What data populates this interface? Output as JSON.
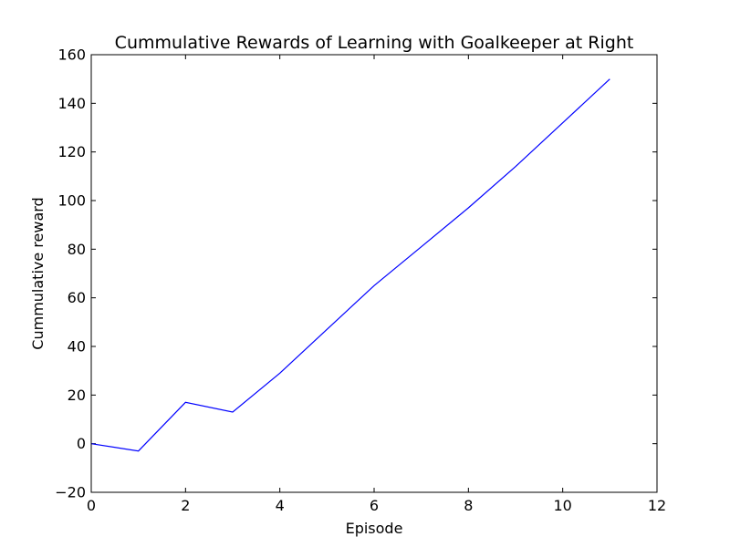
{
  "chart_data": {
    "type": "line",
    "title": "Cummulative Rewards of Learning with Goalkeeper at Right",
    "xlabel": "Episode",
    "ylabel": "Cummulative reward",
    "xlim": [
      0,
      12
    ],
    "ylim": [
      -20,
      160
    ],
    "x_ticks": [
      0,
      2,
      4,
      6,
      8,
      10,
      12
    ],
    "y_ticks": [
      -20,
      0,
      20,
      40,
      60,
      80,
      100,
      120,
      140,
      160
    ],
    "x_tick_labels": [
      "0",
      "2",
      "4",
      "6",
      "8",
      "10",
      "12"
    ],
    "y_tick_labels": [
      "−20",
      "0",
      "20",
      "40",
      "60",
      "80",
      "100",
      "120",
      "140",
      "160"
    ],
    "grid": false,
    "series": [
      {
        "color": "#0000ff",
        "x": [
          0,
          1,
          2,
          3,
          4,
          5,
          6,
          7,
          8,
          9,
          10,
          11
        ],
        "y": [
          0,
          -3,
          17,
          13,
          29,
          47,
          65,
          81,
          97,
          114,
          132,
          150
        ]
      }
    ]
  }
}
